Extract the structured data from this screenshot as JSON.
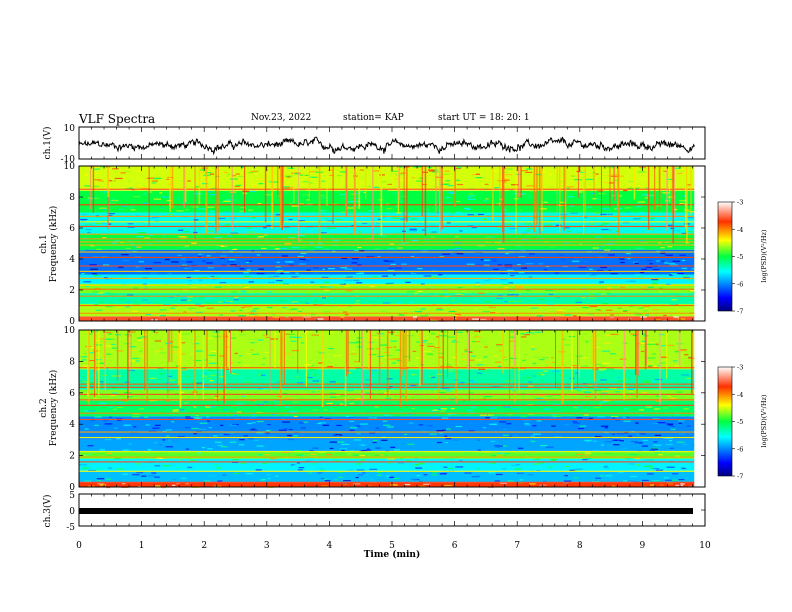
{
  "header": {
    "title": "VLF Spectra",
    "date": "Nov.23, 2022",
    "station": "station= KAP",
    "start": "start  UT =   18: 20: 1"
  },
  "chart_data": [
    {
      "type": "line",
      "panel": "ch1-waveform",
      "ylabel": "ch.1(V)",
      "ylim": [
        -10,
        10
      ],
      "yticks": [
        "10",
        "-10"
      ],
      "x_range": [
        0,
        9.83
      ],
      "series": [
        {
          "color": "#000000",
          "level": -1.5,
          "amplitude": 3.5
        }
      ]
    },
    {
      "type": "heatmap",
      "panel": "ch1-spectrogram",
      "ylabel": "ch.1\nFrequency (kHz)",
      "ylim": [
        0,
        10
      ],
      "yticks": [
        "0",
        "2",
        "4",
        "6",
        "8",
        "10"
      ],
      "x_range": [
        0,
        9.83
      ],
      "colorbar": {
        "label": "log(PSD)(V²/Hz)",
        "ticks": [
          "-3",
          "-4",
          "-5",
          "-6",
          "-7"
        ],
        "range": [
          -7,
          -3
        ]
      },
      "bands": [
        {
          "f": [
            0,
            0.3
          ],
          "v": -3.6
        },
        {
          "f": [
            0.3,
            1.1
          ],
          "v": -4.6
        },
        {
          "f": [
            1.1,
            1.8
          ],
          "v": -5.3
        },
        {
          "f": [
            1.8,
            2.4
          ],
          "v": -4.7
        },
        {
          "f": [
            2.4,
            3.0
          ],
          "v": -5.6
        },
        {
          "f": [
            3.0,
            4.6
          ],
          "v": -6.1
        },
        {
          "f": [
            4.6,
            5.6
          ],
          "v": -5.0
        },
        {
          "f": [
            5.6,
            7.0
          ],
          "v": -5.5
        },
        {
          "f": [
            7.0,
            8.4
          ],
          "v": -5.0
        },
        {
          "f": [
            8.4,
            10
          ],
          "v": -4.5
        }
      ],
      "lines_khz": [
        0.5,
        1.0,
        1.6,
        2.05,
        2.3,
        2.75,
        3.2,
        3.55,
        4.1,
        4.45,
        4.9,
        5.1,
        5.3,
        5.6,
        6.1,
        6.4,
        6.75,
        7.5,
        8.5
      ]
    },
    {
      "type": "heatmap",
      "panel": "ch2-spectrogram",
      "ylabel": "ch.2\nFrequency (kHz)",
      "ylim": [
        0,
        10
      ],
      "yticks": [
        "0",
        "2",
        "4",
        "6",
        "8",
        "10"
      ],
      "x_range": [
        0,
        9.83
      ],
      "colorbar": {
        "label": "log(PSD)(V²/Hz)",
        "ticks": [
          "-3",
          "-4",
          "-5",
          "-6",
          "-7"
        ],
        "range": [
          -7,
          -3
        ]
      },
      "bands": [
        {
          "f": [
            0,
            0.3
          ],
          "v": -3.7
        },
        {
          "f": [
            0.3,
            1.0
          ],
          "v": -5.8
        },
        {
          "f": [
            1.0,
            1.8
          ],
          "v": -5.6
        },
        {
          "f": [
            1.8,
            2.3
          ],
          "v": -4.8
        },
        {
          "f": [
            2.3,
            3.0
          ],
          "v": -5.9
        },
        {
          "f": [
            3.0,
            4.5
          ],
          "v": -6.0
        },
        {
          "f": [
            4.5,
            5.5
          ],
          "v": -5.1
        },
        {
          "f": [
            5.5,
            6.2
          ],
          "v": -4.7
        },
        {
          "f": [
            6.2,
            7.5
          ],
          "v": -5.3
        },
        {
          "f": [
            7.5,
            10
          ],
          "v": -4.6
        }
      ],
      "lines_khz": [
        0.3,
        1.0,
        1.6,
        1.9,
        2.25,
        3.15,
        3.5,
        4.3,
        4.7,
        5.2,
        5.55,
        5.9,
        6.35,
        6.55,
        7.6
      ]
    },
    {
      "type": "line",
      "panel": "ch3-waveform",
      "ylabel": "ch.3(V)",
      "ylim": [
        -5,
        5
      ],
      "yticks": [
        "5",
        "0",
        "-5"
      ],
      "x_range": [
        0,
        9.83
      ],
      "series": [
        {
          "color": "#000000",
          "level": 0,
          "thickness": 1
        }
      ]
    }
  ],
  "xaxis": {
    "label": "Time (min)",
    "range": [
      0,
      10
    ],
    "ticks": [
      "0",
      "1",
      "2",
      "3",
      "4",
      "5",
      "6",
      "7",
      "8",
      "9",
      "10"
    ]
  }
}
